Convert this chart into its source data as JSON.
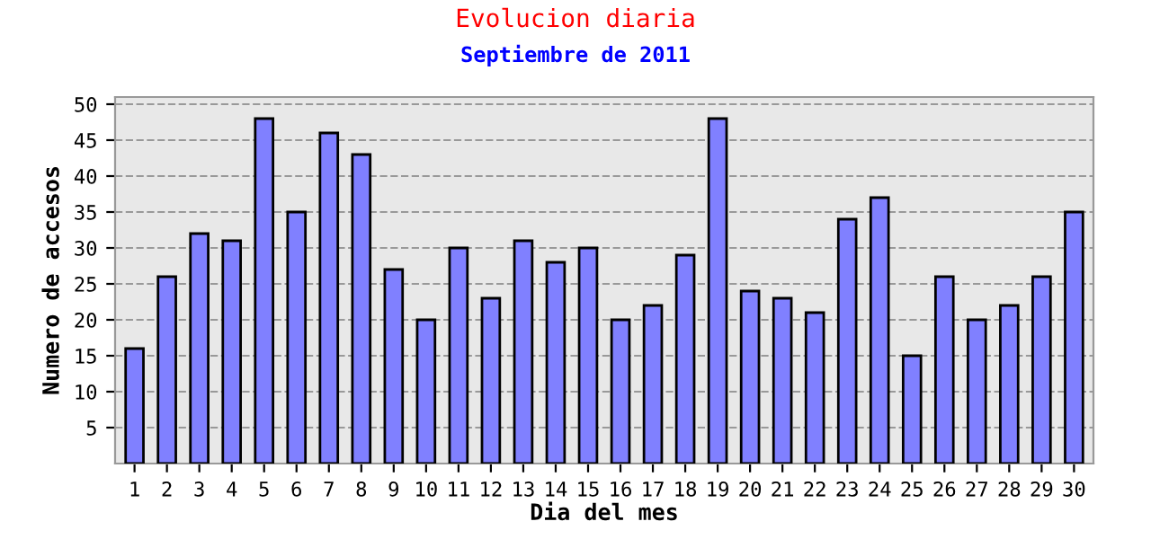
{
  "chart_data": {
    "type": "bar",
    "title": "Evolucion diaria",
    "subtitle": "Septiembre de 2011",
    "xlabel": "Dia del mes",
    "ylabel": "Numero de accesos",
    "categories": [
      "1",
      "2",
      "3",
      "4",
      "5",
      "6",
      "7",
      "8",
      "9",
      "10",
      "11",
      "12",
      "13",
      "14",
      "15",
      "16",
      "17",
      "18",
      "19",
      "20",
      "21",
      "22",
      "23",
      "24",
      "25",
      "26",
      "27",
      "28",
      "29",
      "30"
    ],
    "values": [
      16,
      26,
      32,
      31,
      48,
      35,
      46,
      43,
      27,
      20,
      30,
      23,
      31,
      28,
      30,
      20,
      22,
      29,
      48,
      24,
      23,
      21,
      34,
      37,
      15,
      26,
      20,
      22,
      26,
      35
    ],
    "color": "#8080ff",
    "ylim": [
      0,
      51
    ],
    "yticks": [
      5,
      10,
      15,
      20,
      25,
      30,
      35,
      40,
      45,
      50
    ],
    "grid": "y"
  }
}
